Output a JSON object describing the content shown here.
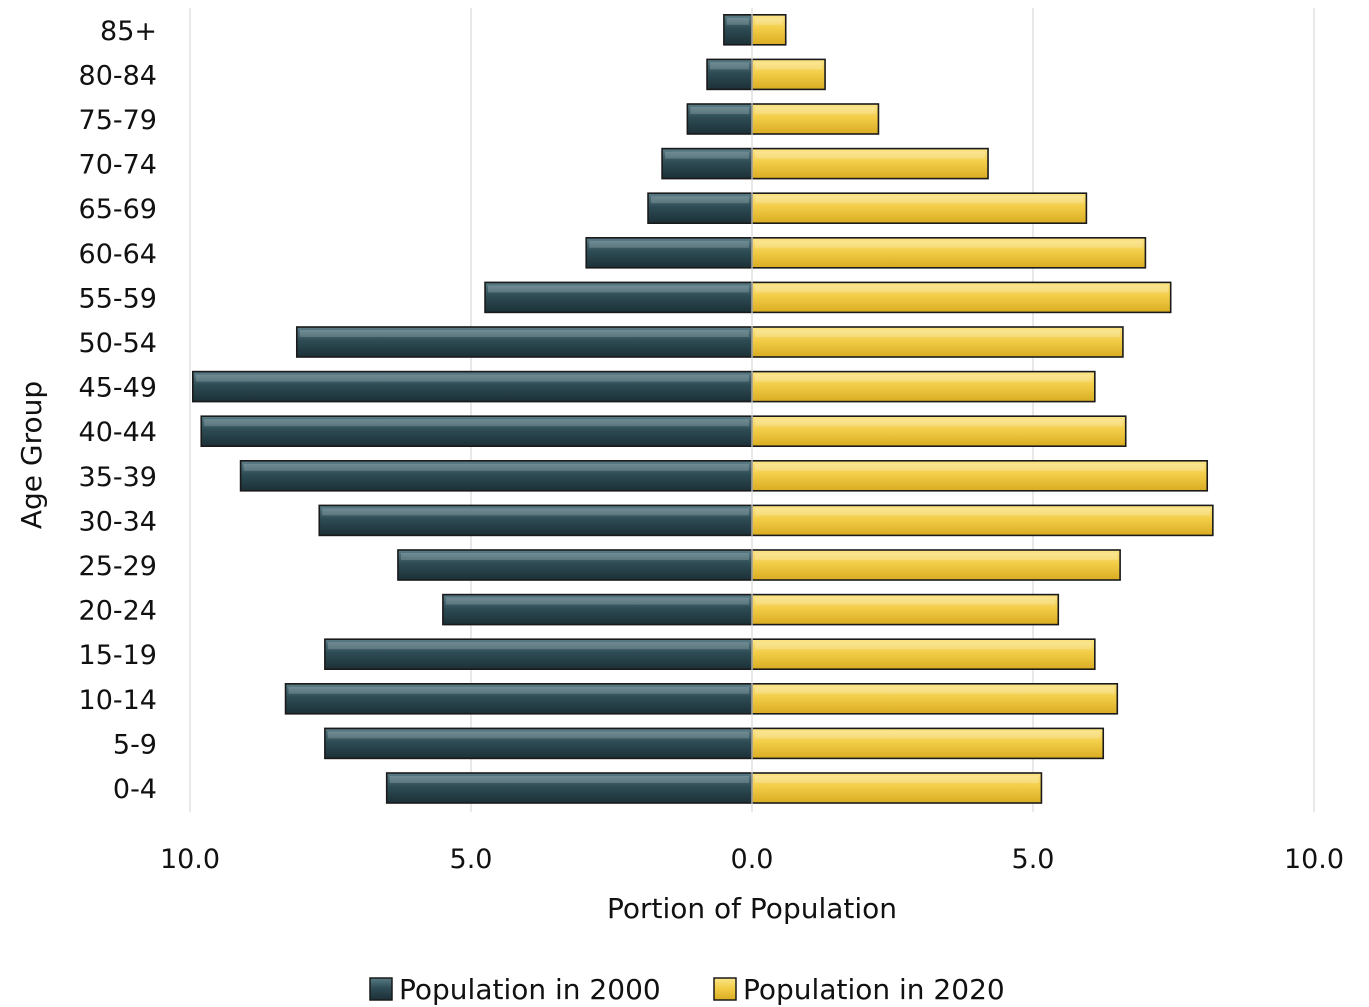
{
  "chart_data": {
    "type": "bar",
    "orientation": "horizontal",
    "layout": "population-pyramid",
    "categories": [
      "0-4",
      "5-9",
      "10-14",
      "15-19",
      "20-24",
      "25-29",
      "30-34",
      "35-39",
      "40-44",
      "45-49",
      "50-54",
      "55-59",
      "60-64",
      "65-69",
      "70-74",
      "75-79",
      "80-84",
      "85+"
    ],
    "series": [
      {
        "name": "Population in 2000",
        "side": "left",
        "color": "#2f4f59",
        "values": [
          6.5,
          7.6,
          8.3,
          7.6,
          5.5,
          6.3,
          7.7,
          9.1,
          9.8,
          9.95,
          8.1,
          4.75,
          2.95,
          1.85,
          1.6,
          1.15,
          0.8,
          0.5
        ]
      },
      {
        "name": "Population in 2020",
        "side": "right",
        "color": "#f5d04c",
        "values": [
          5.15,
          6.25,
          6.5,
          6.1,
          5.45,
          6.55,
          8.2,
          8.1,
          6.65,
          6.1,
          6.6,
          7.45,
          7.0,
          5.95,
          4.2,
          2.25,
          1.3,
          0.6
        ]
      }
    ],
    "xlabel": "Portion of Population",
    "ylabel": "Age Group",
    "xlim": [
      -10,
      10
    ],
    "xticks": [
      {
        "value": -10,
        "label": "10.0"
      },
      {
        "value": -5,
        "label": "5.0"
      },
      {
        "value": 0,
        "label": "0.0"
      },
      {
        "value": 5,
        "label": "5.0"
      },
      {
        "value": 10,
        "label": "10.0"
      }
    ],
    "grid": "vertical",
    "legend": "bottom"
  }
}
